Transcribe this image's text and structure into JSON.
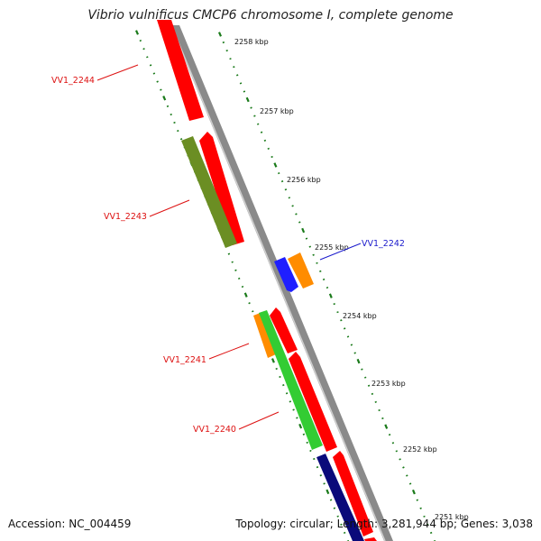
{
  "title": "Vibrio vulnificus CMCP6 chromosome I, complete genome",
  "footer": {
    "accession": "Accession: NC_004459",
    "info": "Topology: circular; Length: 3,281,944 bp; Genes: 3,038"
  },
  "ticks": [
    {
      "label": "2258 kbp"
    },
    {
      "label": "2257 kbp"
    },
    {
      "label": "2256 kbp"
    },
    {
      "label": "2255 kbp"
    },
    {
      "label": "2254 kbp"
    },
    {
      "label": "2253 kbp"
    },
    {
      "label": "2252 kbp"
    },
    {
      "label": "2251 kbp"
    }
  ],
  "genes": [
    {
      "label": "VV1_2244",
      "color": "#dd1111"
    },
    {
      "label": "VV1_2243",
      "color": "#dd1111"
    },
    {
      "label": "VV1_2242",
      "color": "#1a1acc"
    },
    {
      "label": "VV1_2241",
      "color": "#dd1111"
    },
    {
      "label": "VV1_2240",
      "color": "#dd1111"
    }
  ],
  "colors": {
    "cds": "#ff0000",
    "olive": "#6b8e23",
    "blue": "#1f1fff",
    "orange": "#ff8c00",
    "green": "#33cc33",
    "navy": "#0a0a7a",
    "backbone": "#888888",
    "tick": "#1a7a1a"
  }
}
